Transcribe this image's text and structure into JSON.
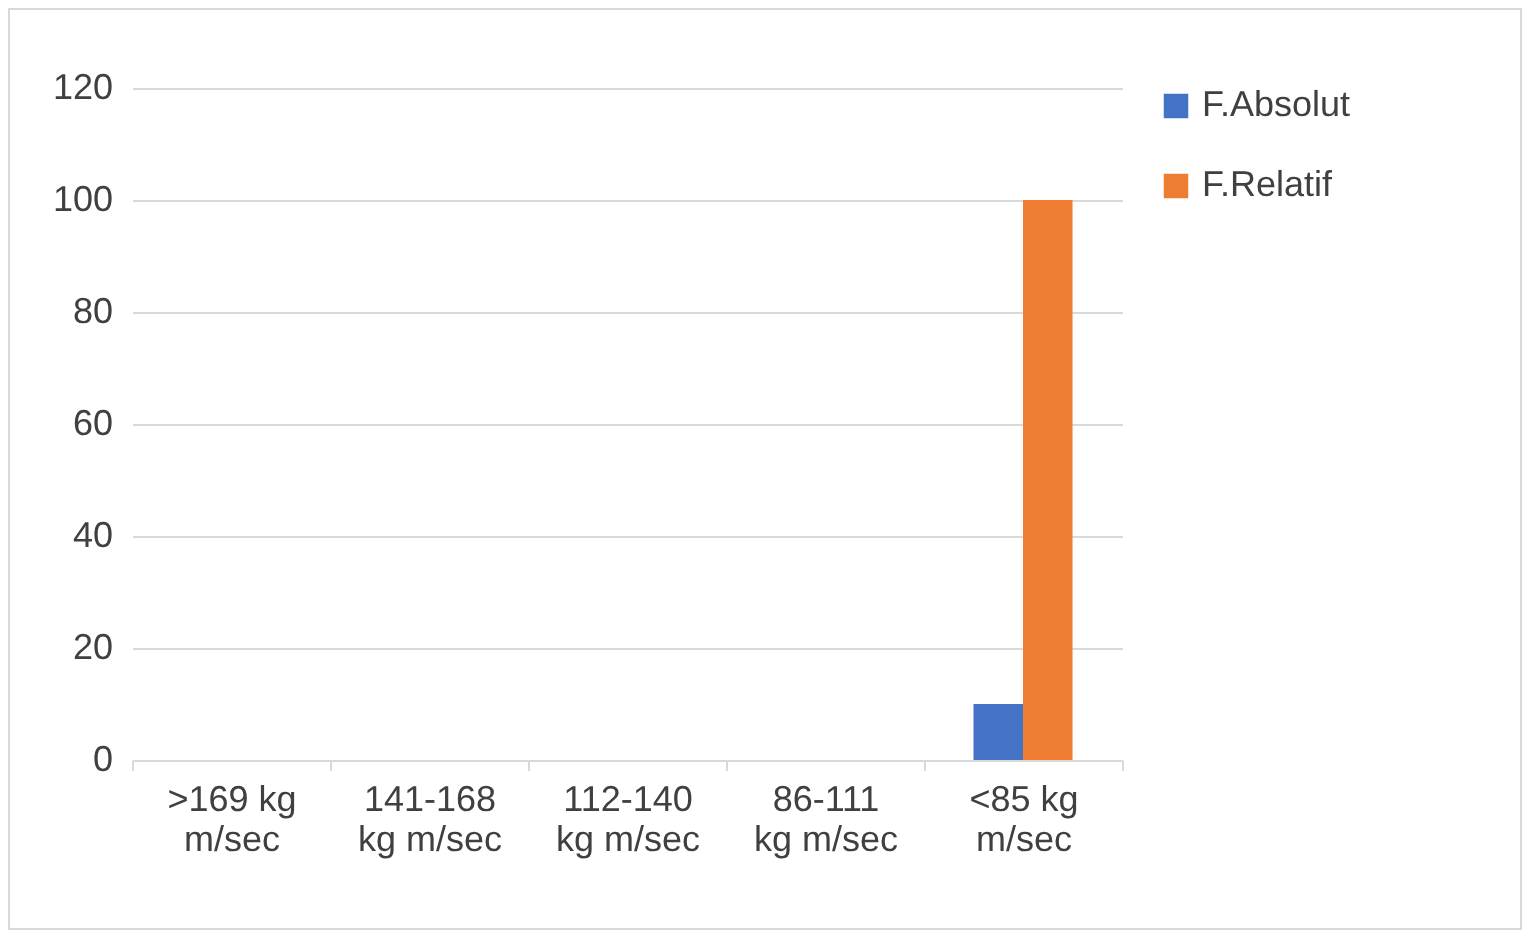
{
  "chart_data": {
    "type": "bar",
    "categories": [
      ">169 kg m/sec",
      "141-168 kg m/sec",
      "112-140 kg m/sec",
      "86-111 kg m/sec",
      "<85 kg m/sec"
    ],
    "series": [
      {
        "name": "F.Absolut",
        "color": "#4472c4",
        "values": [
          0,
          0,
          0,
          0,
          10
        ]
      },
      {
        "name": "F.Relatif",
        "color": "#ed7d31",
        "values": [
          0,
          0,
          0,
          0,
          100
        ]
      }
    ],
    "ylim": [
      0,
      120
    ],
    "yticks": [
      0,
      20,
      40,
      60,
      80,
      100,
      120
    ],
    "grid": "y",
    "legend": "right"
  }
}
